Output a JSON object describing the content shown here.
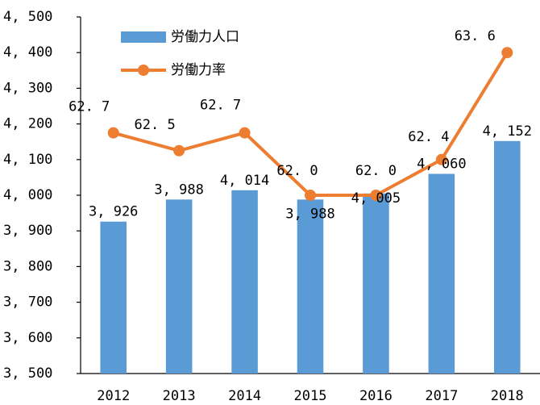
{
  "chart_data": {
    "type": "bar_line",
    "categories": [
      "2012",
      "2013",
      "2014",
      "2015",
      "2016",
      "2017",
      "2018"
    ],
    "series": [
      {
        "name": "労働力人口",
        "type": "bar",
        "color": "#5b9bd5",
        "values": [
          3926,
          3988,
          4014,
          3988,
          4005,
          4060,
          4152
        ],
        "value_labels": [
          "3, 926",
          "3, 988",
          "4, 014",
          "3, 988",
          "4, 005",
          "4, 060",
          "4, 152"
        ]
      },
      {
        "name": "労働力率",
        "type": "line",
        "axis": "y2",
        "color": "#ed7d31",
        "values": [
          62.7,
          62.5,
          62.7,
          62.0,
          62.0,
          62.4,
          63.6
        ],
        "value_labels": [
          "62. 7",
          "62. 5",
          "62. 7",
          "62. 0",
          "62. 0",
          "62. 4",
          "63. 6"
        ]
      }
    ],
    "ylim": [
      3500,
      4500
    ],
    "yticks": [
      {
        "value": 3500,
        "label": "3, 500"
      },
      {
        "value": 3600,
        "label": "3, 600"
      },
      {
        "value": 3700,
        "label": "3, 700"
      },
      {
        "value": 3800,
        "label": "3, 800"
      },
      {
        "value": 3900,
        "label": "3, 900"
      },
      {
        "value": 4000,
        "label": "4, 000"
      },
      {
        "value": 4100,
        "label": "4, 100"
      },
      {
        "value": 4200,
        "label": "4, 200"
      },
      {
        "value": 4300,
        "label": "4, 300"
      },
      {
        "value": 4400,
        "label": "4, 400"
      },
      {
        "value": 4500,
        "label": "4, 500"
      }
    ],
    "y2lim": [
      60,
      64
    ],
    "legend": "top-left"
  }
}
